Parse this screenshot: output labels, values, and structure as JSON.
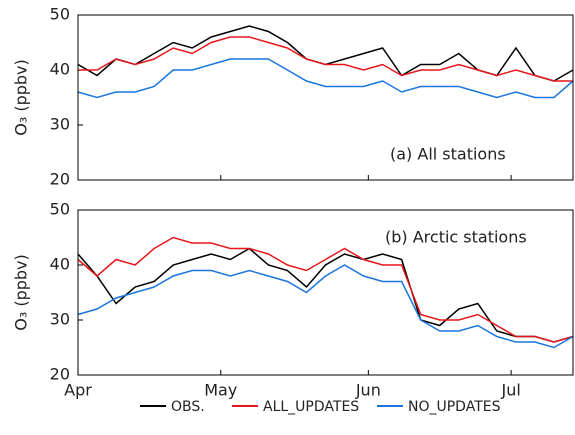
{
  "chart_data": [
    {
      "type": "line",
      "annotation": "(a) All stations",
      "ylabel": "O₃ (ppbv)",
      "x": [
        0,
        4,
        8,
        12,
        16,
        20,
        24,
        28,
        32,
        36,
        40,
        44,
        48,
        52,
        56,
        60,
        64,
        68,
        72,
        76,
        80,
        84,
        88,
        92,
        96,
        100,
        104
      ],
      "xlim": [
        0,
        104
      ],
      "xticks": [
        0,
        30,
        61,
        91
      ],
      "ylim": [
        20,
        50
      ],
      "yticks": [
        20,
        30,
        40,
        50
      ],
      "series": [
        {
          "color": "#000000",
          "values": [
            41,
            39,
            42,
            41,
            43,
            45,
            44,
            46,
            47,
            48,
            47,
            45,
            42,
            41,
            42,
            43,
            44,
            39,
            41,
            41,
            43,
            40,
            39,
            44,
            39,
            38,
            40
          ]
        },
        {
          "color": "#e8161b",
          "values": [
            40,
            40,
            42,
            41,
            42,
            44,
            43,
            45,
            46,
            46,
            45,
            44,
            42,
            41,
            41,
            40,
            41,
            39,
            40,
            40,
            41,
            40,
            39,
            40,
            39,
            38,
            38
          ]
        },
        {
          "color": "#1a75e0",
          "values": [
            36,
            35,
            36,
            36,
            37,
            40,
            40,
            41,
            42,
            42,
            42,
            40,
            38,
            37,
            37,
            37,
            38,
            36,
            37,
            37,
            37,
            36,
            35,
            36,
            35,
            35,
            38
          ]
        }
      ]
    },
    {
      "type": "line",
      "annotation": "(b) Arctic stations",
      "ylabel": "O₃ (ppbv)",
      "x": [
        0,
        4,
        8,
        12,
        16,
        20,
        24,
        28,
        32,
        36,
        40,
        44,
        48,
        52,
        56,
        60,
        64,
        68,
        72,
        76,
        80,
        84,
        88,
        92,
        96,
        100,
        104
      ],
      "xlim": [
        0,
        104
      ],
      "xticks": [
        {
          "value": 0,
          "label": "Apr"
        },
        {
          "value": 30,
          "label": "May"
        },
        {
          "value": 61,
          "label": "Jun"
        },
        {
          "value": 91,
          "label": "Jul"
        }
      ],
      "ylim": [
        20,
        50
      ],
      "yticks": [
        20,
        30,
        40,
        50
      ],
      "series": [
        {
          "name": "OBS.",
          "color": "#000000",
          "values": [
            42,
            38,
            33,
            36,
            37,
            40,
            41,
            42,
            41,
            43,
            40,
            39,
            36,
            40,
            42,
            41,
            42,
            41,
            30,
            29,
            32,
            33,
            28,
            27,
            27,
            26,
            27
          ]
        },
        {
          "name": "ALL_UPDATES",
          "color": "#e8161b",
          "values": [
            41,
            38,
            41,
            40,
            43,
            45,
            44,
            44,
            43,
            43,
            42,
            40,
            39,
            41,
            43,
            41,
            40,
            40,
            31,
            30,
            30,
            31,
            29,
            27,
            27,
            26,
            27
          ]
        },
        {
          "name": "NO_UPDATES",
          "color": "#1a75e0",
          "values": [
            31,
            32,
            34,
            35,
            36,
            38,
            39,
            39,
            38,
            39,
            38,
            37,
            35,
            38,
            40,
            38,
            37,
            37,
            30,
            28,
            28,
            29,
            27,
            26,
            26,
            25,
            27
          ]
        }
      ]
    }
  ]
}
